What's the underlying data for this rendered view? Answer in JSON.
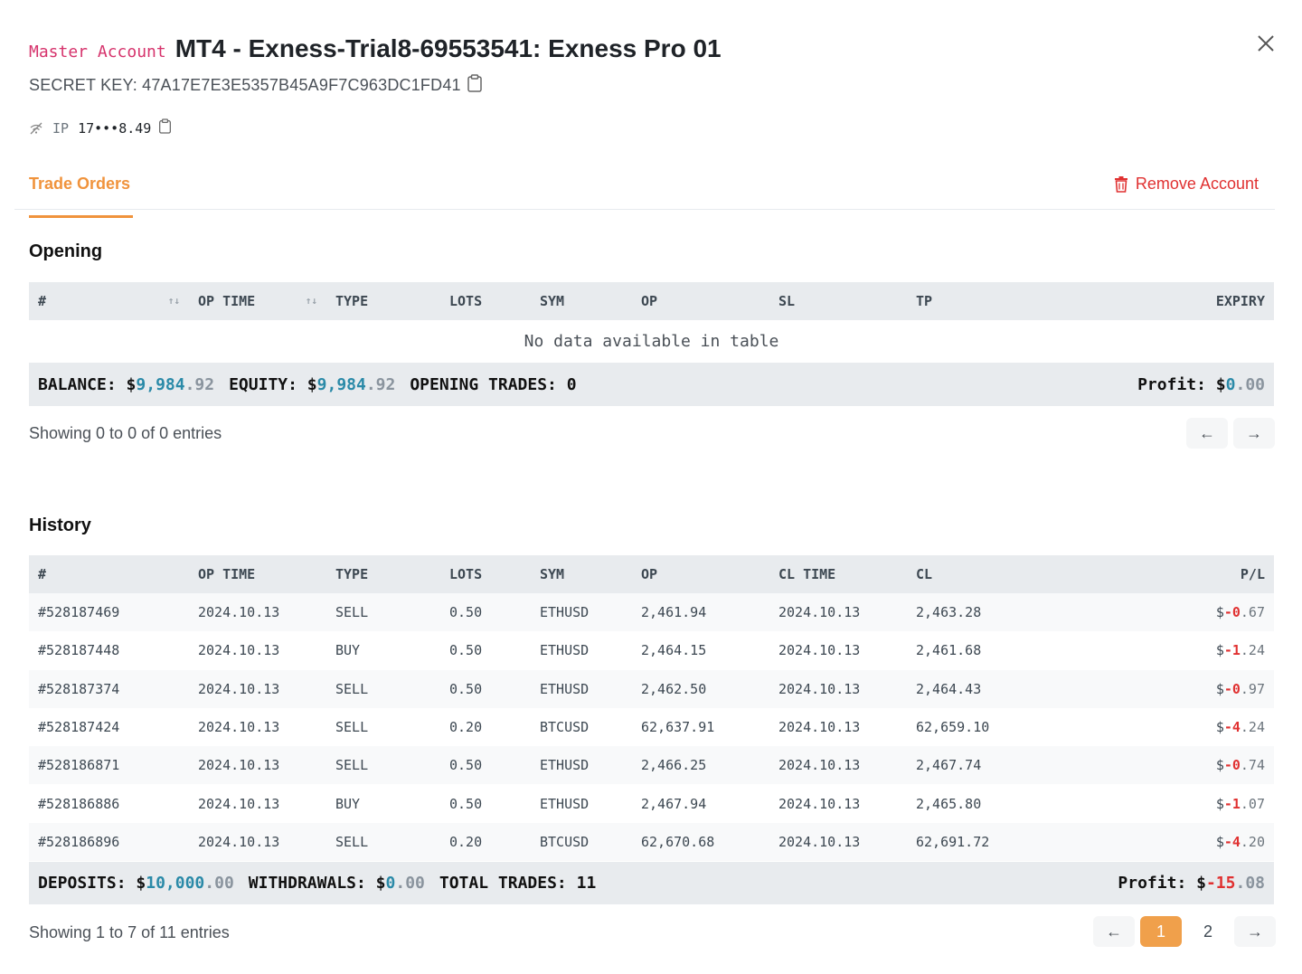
{
  "header": {
    "master_label": "Master Account",
    "title": "MT4 - Exness-Trial8-69553541: Exness Pro 01",
    "secret_key": "SECRET KEY: 47A17E7E3E5357B45A9F7C963DC1FD41",
    "ip_label": "IP",
    "ip_value": "17•••8.49"
  },
  "tabs": {
    "active": "Trade Orders",
    "remove_account": "Remove Account"
  },
  "opening": {
    "title": "Opening",
    "columns": [
      "#",
      "OP TIME",
      "TYPE",
      "LOTS",
      "SYM",
      "OP",
      "SL",
      "TP",
      "EXPIRY"
    ],
    "empty_text": "No data available in table",
    "summary": {
      "balance_label": "BALANCE:",
      "balance_dollar": "$",
      "balance_int": "9,984",
      "balance_dec": ".92",
      "equity_label": "EQUITY:",
      "equity_dollar": "$",
      "equity_int": "9,984",
      "equity_dec": ".92",
      "trades_label": "OPENING TRADES:",
      "trades_value": "0",
      "profit_label": "Profit:",
      "profit_dollar": "$",
      "profit_int": "0",
      "profit_dec": ".00"
    },
    "showing": "Showing 0 to 0 of 0 entries",
    "pager": {
      "prev": "←",
      "next": "→"
    }
  },
  "history": {
    "title": "History",
    "columns": [
      "#",
      "OP TIME",
      "TYPE",
      "LOTS",
      "SYM",
      "OP",
      "CL TIME",
      "CL",
      "P/L"
    ],
    "rows": [
      {
        "id": "#528187469",
        "op_time": "2024.10.13",
        "type": "SELL",
        "lots": "0.50",
        "sym": "ETHUSD",
        "op": "2,461.94",
        "cl_time": "2024.10.13",
        "cl": "2,463.28",
        "pl_dollar": "$",
        "pl_int": "-0",
        "pl_dec": ".67"
      },
      {
        "id": "#528187448",
        "op_time": "2024.10.13",
        "type": "BUY",
        "lots": "0.50",
        "sym": "ETHUSD",
        "op": "2,464.15",
        "cl_time": "2024.10.13",
        "cl": "2,461.68",
        "pl_dollar": "$",
        "pl_int": "-1",
        "pl_dec": ".24"
      },
      {
        "id": "#528187374",
        "op_time": "2024.10.13",
        "type": "SELL",
        "lots": "0.50",
        "sym": "ETHUSD",
        "op": "2,462.50",
        "cl_time": "2024.10.13",
        "cl": "2,464.43",
        "pl_dollar": "$",
        "pl_int": "-0",
        "pl_dec": ".97"
      },
      {
        "id": "#528187424",
        "op_time": "2024.10.13",
        "type": "SELL",
        "lots": "0.20",
        "sym": "BTCUSD",
        "op": "62,637.91",
        "cl_time": "2024.10.13",
        "cl": "62,659.10",
        "pl_dollar": "$",
        "pl_int": "-4",
        "pl_dec": ".24"
      },
      {
        "id": "#528186871",
        "op_time": "2024.10.13",
        "type": "SELL",
        "lots": "0.50",
        "sym": "ETHUSD",
        "op": "2,466.25",
        "cl_time": "2024.10.13",
        "cl": "2,467.74",
        "pl_dollar": "$",
        "pl_int": "-0",
        "pl_dec": ".74"
      },
      {
        "id": "#528186886",
        "op_time": "2024.10.13",
        "type": "BUY",
        "lots": "0.50",
        "sym": "ETHUSD",
        "op": "2,467.94",
        "cl_time": "2024.10.13",
        "cl": "2,465.80",
        "pl_dollar": "$",
        "pl_int": "-1",
        "pl_dec": ".07"
      },
      {
        "id": "#528186896",
        "op_time": "2024.10.13",
        "type": "SELL",
        "lots": "0.20",
        "sym": "BTCUSD",
        "op": "62,670.68",
        "cl_time": "2024.10.13",
        "cl": "62,691.72",
        "pl_dollar": "$",
        "pl_int": "-4",
        "pl_dec": ".20"
      }
    ],
    "summary": {
      "deposits_label": "DEPOSITS:",
      "deposits_dollar": "$",
      "deposits_int": "10,000",
      "deposits_dec": ".00",
      "withdrawals_label": "WITHDRAWALS:",
      "withdrawals_dollar": "$",
      "withdrawals_int": "0",
      "withdrawals_dec": ".00",
      "trades_label": "TOTAL TRADES:",
      "trades_value": "11",
      "profit_label": "Profit:",
      "profit_dollar": "$",
      "profit_int": "-15",
      "profit_dec": ".08"
    },
    "showing": "Showing 1 to 7 of 11 entries",
    "pager": {
      "prev": "←",
      "page1": "1",
      "page2": "2",
      "next": "→"
    }
  },
  "colors": {
    "accent": "#f0933c",
    "danger": "#e03131",
    "positive": "#2b8aa8",
    "header_bg": "#e8ebee"
  }
}
